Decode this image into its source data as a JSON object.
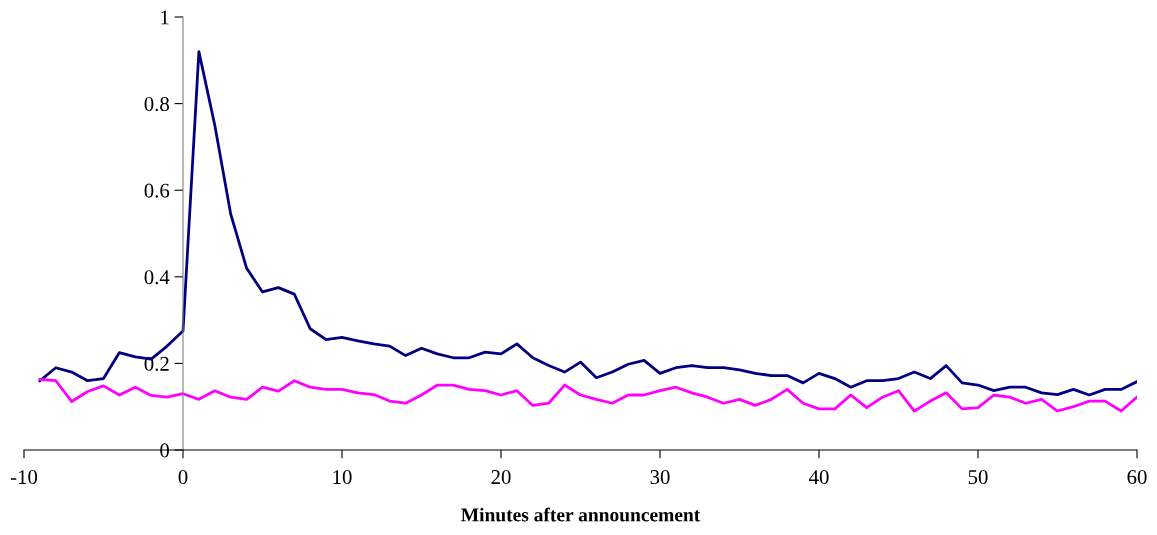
{
  "chart_data": {
    "type": "line",
    "xlabel": "Minutes after announcement",
    "x": [
      -9,
      -8,
      -7,
      -6,
      -5,
      -4,
      -3,
      -2,
      -1,
      0,
      1,
      2,
      3,
      4,
      5,
      6,
      7,
      8,
      9,
      10,
      11,
      12,
      13,
      14,
      15,
      16,
      17,
      18,
      19,
      20,
      21,
      22,
      23,
      24,
      25,
      26,
      27,
      28,
      29,
      30,
      31,
      32,
      33,
      34,
      35,
      36,
      37,
      38,
      39,
      40,
      41,
      42,
      43,
      44,
      45,
      46,
      47,
      48,
      49,
      50,
      51,
      52,
      53,
      54,
      55,
      56,
      57,
      58,
      59,
      60
    ],
    "series": [
      {
        "color": "#000080",
        "values": [
          0.16,
          0.19,
          0.18,
          0.16,
          0.165,
          0.225,
          0.215,
          0.21,
          0.24,
          0.275,
          0.92,
          0.75,
          0.545,
          0.42,
          0.365,
          0.375,
          0.36,
          0.28,
          0.255,
          0.26,
          0.252,
          0.245,
          0.24,
          0.218,
          0.235,
          0.222,
          0.213,
          0.213,
          0.226,
          0.222,
          0.245,
          0.213,
          0.195,
          0.18,
          0.203,
          0.167,
          0.18,
          0.198,
          0.207,
          0.177,
          0.19,
          0.195,
          0.19,
          0.19,
          0.185,
          0.177,
          0.172,
          0.172,
          0.155,
          0.177,
          0.165,
          0.145,
          0.16,
          0.16,
          0.165,
          0.18,
          0.165,
          0.195,
          0.155,
          0.15,
          0.137,
          0.145,
          0.145,
          0.132,
          0.128,
          0.14,
          0.127,
          0.14,
          0.14,
          0.158
        ]
      },
      {
        "color": "#ff00ff",
        "values": [
          0.163,
          0.16,
          0.112,
          0.135,
          0.148,
          0.127,
          0.145,
          0.126,
          0.122,
          0.13,
          0.117,
          0.137,
          0.122,
          0.117,
          0.145,
          0.136,
          0.16,
          0.145,
          0.14,
          0.14,
          0.132,
          0.128,
          0.113,
          0.108,
          0.127,
          0.15,
          0.15,
          0.14,
          0.137,
          0.127,
          0.137,
          0.103,
          0.108,
          0.15,
          0.127,
          0.117,
          0.108,
          0.127,
          0.127,
          0.137,
          0.145,
          0.132,
          0.122,
          0.108,
          0.117,
          0.103,
          0.117,
          0.14,
          0.108,
          0.095,
          0.095,
          0.127,
          0.098,
          0.122,
          0.137,
          0.09,
          0.113,
          0.132,
          0.095,
          0.098,
          0.127,
          0.122,
          0.108,
          0.117,
          0.09,
          0.1,
          0.113,
          0.113,
          0.09,
          0.122
        ]
      }
    ],
    "xlim": [
      -10,
      60
    ],
    "xticks": [
      -10,
      0,
      10,
      20,
      30,
      40,
      50,
      60
    ],
    "ylim": [
      0,
      1
    ],
    "yticks": [
      0,
      0.2,
      0.4,
      0.6,
      0.8,
      1
    ],
    "grid": false,
    "marker": "none",
    "line_style": "solid"
  }
}
